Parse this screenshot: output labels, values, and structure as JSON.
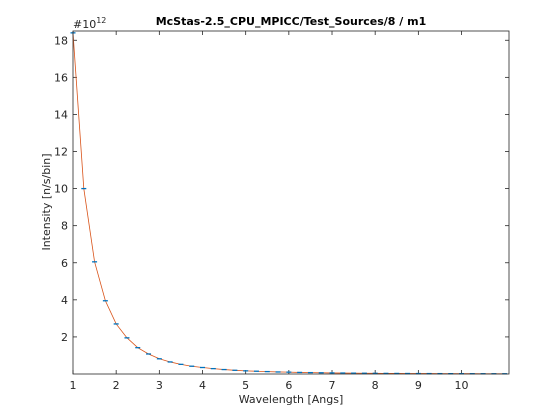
{
  "chart_data": {
    "type": "line",
    "title": "McStas-2.5_CPU_MPICC/Test_Sources/8 / m1",
    "xlabel": "Wavelength [Angs]",
    "ylabel": "Intensity [n/s/bin]",
    "y_exponent_label": "#10",
    "y_exponent_power": "12",
    "xlim": [
      1,
      11.1
    ],
    "ylim": [
      0,
      18.5
    ],
    "xticks": [
      1,
      2,
      3,
      4,
      5,
      6,
      7,
      8,
      9,
      10
    ],
    "yticks": [
      2,
      4,
      6,
      8,
      10,
      12,
      14,
      16,
      18
    ],
    "grid": false,
    "series": [
      {
        "color": "#d95319",
        "marker_color": "#0072bd",
        "x": [
          1.0,
          1.25,
          1.5,
          1.75,
          2.0,
          2.25,
          2.5,
          2.75,
          3.0,
          3.25,
          3.5,
          3.75,
          4.0,
          4.25,
          4.5,
          4.75,
          5.0,
          5.25,
          5.5,
          5.75,
          6.0,
          6.25,
          6.5,
          6.75,
          7.0,
          7.25,
          7.5,
          7.75,
          8.0,
          8.25,
          8.5,
          8.75,
          9.0,
          9.25,
          9.5,
          9.75,
          10.0,
          10.25,
          10.5,
          10.75,
          11.0
        ],
        "y": [
          18.4,
          10.0,
          6.05,
          3.95,
          2.7,
          1.95,
          1.42,
          1.08,
          0.82,
          0.65,
          0.52,
          0.42,
          0.35,
          0.29,
          0.24,
          0.2,
          0.17,
          0.15,
          0.13,
          0.11,
          0.1,
          0.085,
          0.075,
          0.066,
          0.058,
          0.052,
          0.046,
          0.041,
          0.037,
          0.033,
          0.03,
          0.027,
          0.025,
          0.023,
          0.021,
          0.019,
          0.017,
          0.016,
          0.015,
          0.014,
          0.013
        ]
      }
    ]
  }
}
